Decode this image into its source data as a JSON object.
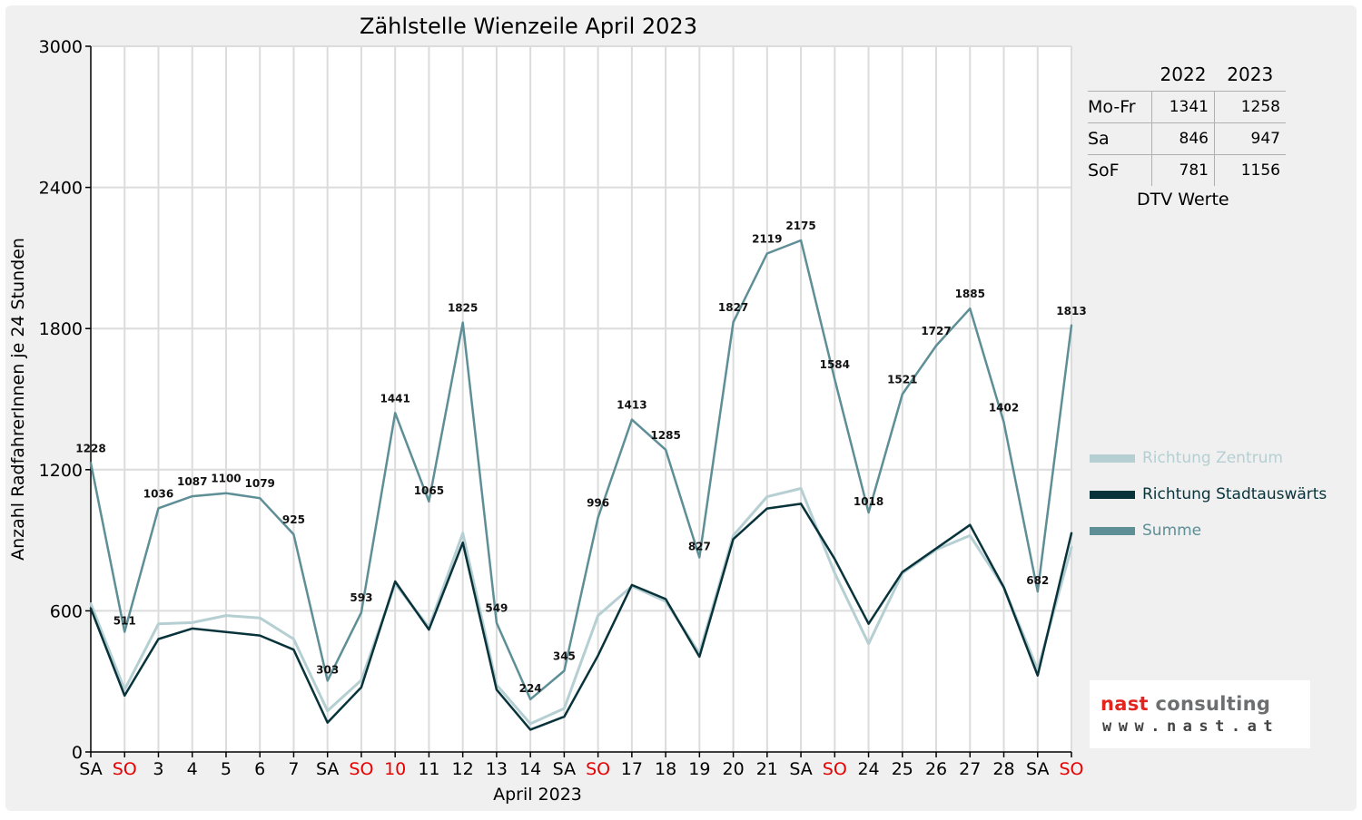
{
  "colors": {
    "background": "#f0f0f0",
    "plot_background": "#ffffff",
    "grid": "#dcdcdc",
    "axis": "#000000",
    "weekend_label": "#e60000",
    "richtung_zentrum": "#b5cfd2",
    "richtung_stadtauswaerts": "#08333b",
    "summe": "#5e8e96"
  },
  "chart_data": {
    "type": "line",
    "title": "Zählstelle Wienzeile April 2023",
    "xlabel": "April 2023",
    "ylabel": "Anzahl RadfahrerInnen je 24 Stunden",
    "ylim": [
      0,
      3000
    ],
    "yticks": [
      0,
      600,
      1200,
      1800,
      2400,
      3000
    ],
    "grid": true,
    "legend_position": "right",
    "categories": [
      "SA",
      "SO",
      "3",
      "4",
      "5",
      "6",
      "7",
      "SA",
      "SO",
      "10",
      "11",
      "12",
      "13",
      "14",
      "SA",
      "SO",
      "17",
      "18",
      "19",
      "20",
      "21",
      "SA",
      "SO",
      "24",
      "25",
      "26",
      "27",
      "28",
      "SA",
      "SO"
    ],
    "red_categories": [
      1,
      8,
      9,
      15,
      22,
      29
    ],
    "series": [
      {
        "name": "Richtung Zentrum",
        "color": "#b5cfd2",
        "values": [
          630,
          265,
          545,
          550,
          580,
          570,
          480,
          175,
          305,
          715,
          530,
          930,
          285,
          120,
          185,
          580,
          705,
          640,
          420,
          920,
          1085,
          1120,
          760,
          460,
          760,
          860,
          920,
          700,
          350,
          870
        ]
      },
      {
        "name": "Richtung Stadtauswärts",
        "color": "#08333b",
        "values": [
          610,
          240,
          480,
          525,
          510,
          495,
          435,
          125,
          275,
          725,
          520,
          890,
          265,
          95,
          150,
          410,
          710,
          650,
          405,
          905,
          1035,
          1055,
          820,
          545,
          765,
          865,
          965,
          700,
          325,
          930
        ]
      },
      {
        "name": "Summe",
        "color": "#5e8e96",
        "values": [
          1228,
          511,
          1036,
          1087,
          1100,
          1079,
          925,
          303,
          593,
          1441,
          1065,
          1825,
          549,
          224,
          345,
          996,
          1413,
          1285,
          827,
          1827,
          2119,
          2175,
          1584,
          1018,
          1521,
          1727,
          1885,
          1402,
          682,
          1813
        ]
      }
    ],
    "data_labels": [
      "1228",
      "511",
      "1036",
      "1087",
      "1100",
      "1079",
      "925",
      "303",
      "593",
      "1441",
      "1065",
      "1825",
      "549",
      "224",
      "345",
      "996",
      "1413",
      "1285",
      "827",
      "1827",
      "2119",
      "2175",
      "1584",
      "1018",
      "1521",
      "1727",
      "1885",
      "1402",
      "682",
      "1813"
    ]
  },
  "dtv_table": {
    "caption": "DTV Werte",
    "columns": [
      "",
      "2022",
      "2023"
    ],
    "rows": [
      {
        "label": "Mo-Fr",
        "v2022": "1341",
        "v2023": "1258"
      },
      {
        "label": "Sa",
        "v2022": "846",
        "v2023": "947"
      },
      {
        "label": "SoF",
        "v2022": "781",
        "v2023": "1156"
      }
    ]
  },
  "legend": [
    {
      "label": "Richtung Zentrum",
      "color": "#b5cfd2"
    },
    {
      "label": "Richtung Stadtauswärts",
      "color": "#08333b"
    },
    {
      "label": "Summe",
      "color": "#5e8e96"
    }
  ],
  "logo": {
    "brand_part1": "nast",
    "brand_part2": " consulting",
    "url": "www.nast.at"
  }
}
